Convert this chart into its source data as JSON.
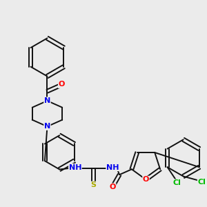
{
  "background_color": "#ebebeb",
  "atom_colors": {
    "C": "#000000",
    "N": "#0000ee",
    "O": "#ff0000",
    "S": "#aaaa00",
    "Cl": "#00bb00",
    "H": "#000000"
  },
  "bond_color": "#111111",
  "bond_width": 1.4,
  "figsize": [
    3.0,
    3.0
  ],
  "dpi": 100,
  "fs": 8,
  "fs_sm": 7
}
